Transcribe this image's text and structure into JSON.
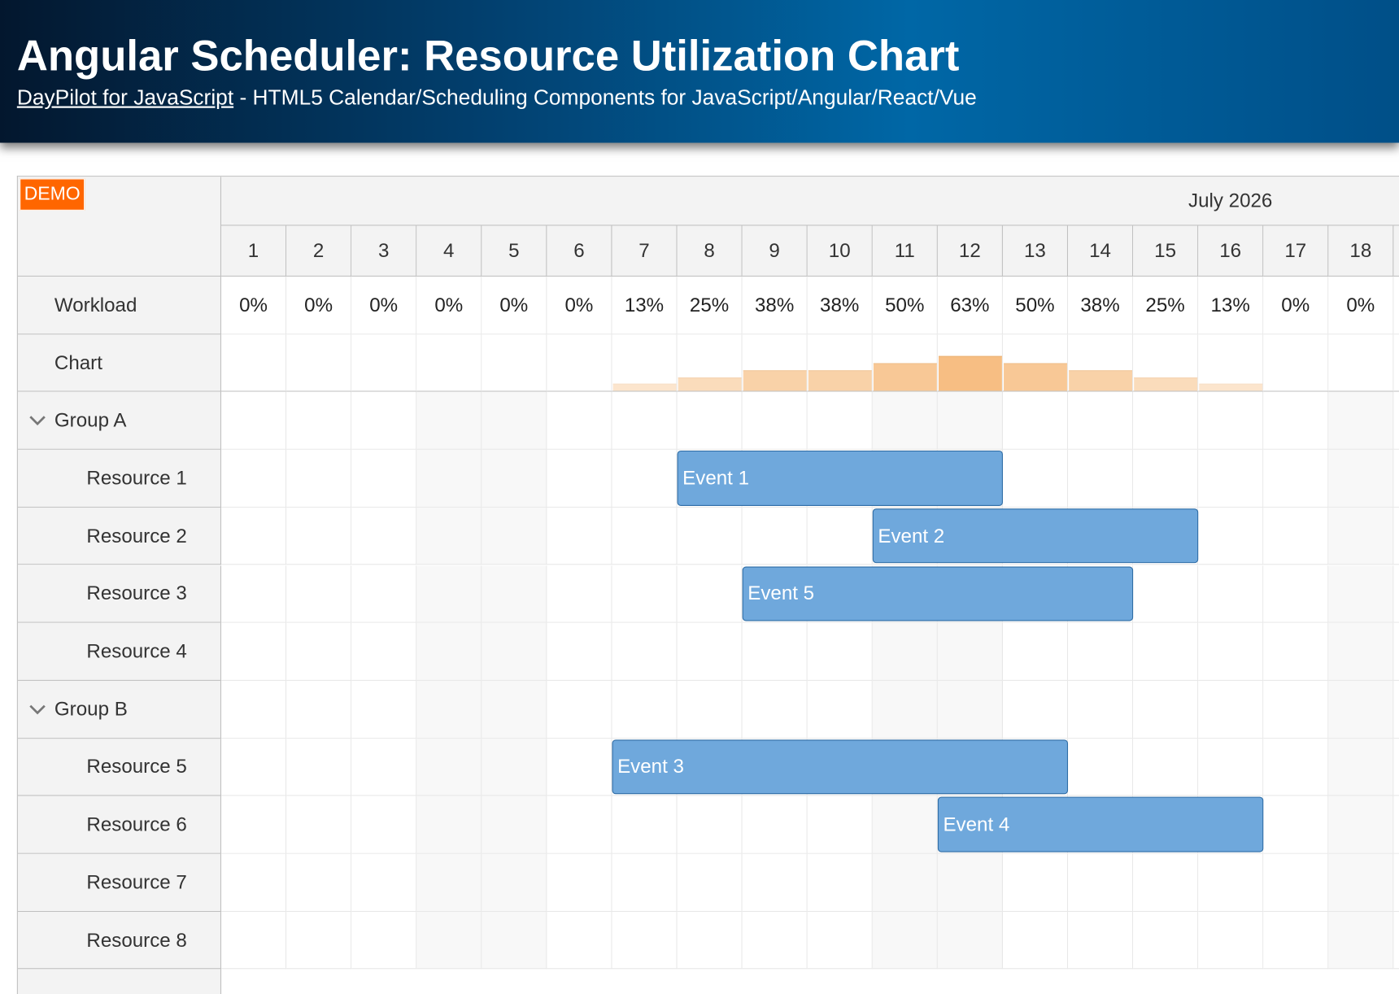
{
  "header": {
    "title": "Angular Scheduler: Resource Utilization Chart",
    "link": "DayPilot for JavaScript",
    "subtitle": "- HTML5 Calendar/Scheduling Components for JavaScript/Angular/React/Vue"
  },
  "scheduler": {
    "badge": "DEMO",
    "month": "July 2026",
    "days": [
      1,
      2,
      3,
      4,
      5,
      6,
      7,
      8,
      9,
      10,
      11,
      12,
      13,
      14,
      15,
      16,
      17,
      18
    ],
    "workload": {
      "label": "Workload",
      "values": [
        0,
        0,
        0,
        0,
        0,
        0,
        13,
        25,
        38,
        38,
        50,
        63,
        50,
        38,
        25,
        13,
        0,
        0
      ],
      "value_labels": [
        "0%",
        "0%",
        "0%",
        "0%",
        "0%",
        "0%",
        "13%",
        "25%",
        "38%",
        "38%",
        "50%",
        "63%",
        "50%",
        "38%",
        "25%",
        "13%",
        "0%",
        "0%"
      ]
    },
    "chart_label": "Chart",
    "groups": [
      {
        "name": "Group A",
        "resources": [
          "Resource 1",
          "Resource 2",
          "Resource 3",
          "Resource 4"
        ]
      },
      {
        "name": "Group B",
        "resources": [
          "Resource 5",
          "Resource 6",
          "Resource 7",
          "Resource 8"
        ]
      }
    ],
    "events": [
      {
        "text": "Event 1",
        "resource": "Resource 1",
        "start": 8,
        "end": 12
      },
      {
        "text": "Event 2",
        "resource": "Resource 2",
        "start": 11,
        "end": 15
      },
      {
        "text": "Event 5",
        "resource": "Resource 3",
        "start": 9,
        "end": 14
      },
      {
        "text": "Event 3",
        "resource": "Resource 5",
        "start": 7,
        "end": 13
      },
      {
        "text": "Event 4",
        "resource": "Resource 6",
        "start": 12,
        "end": 16
      }
    ]
  }
}
